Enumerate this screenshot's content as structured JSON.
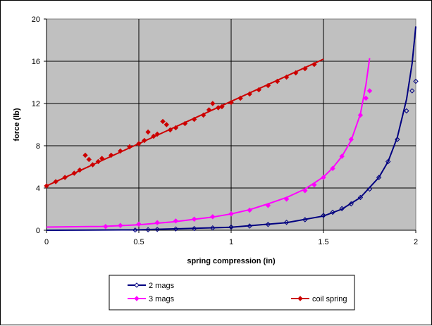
{
  "chart_data": {
    "type": "scatter",
    "title": "",
    "xlabel": "spring compression (in)",
    "ylabel": "force (lb)",
    "xlim": [
      0,
      2
    ],
    "ylim": [
      0,
      20
    ],
    "xticks": [
      "0",
      "0.5",
      "1",
      "1.5",
      "2"
    ],
    "yticks": [
      "0",
      "4",
      "8",
      "12",
      "16",
      "20"
    ],
    "grid": true,
    "legend_position": "bottom",
    "series": [
      {
        "name": "2 mags",
        "color": "#000080",
        "marker": "diamond-open",
        "points": [
          [
            0.48,
            0.02
          ],
          [
            0.55,
            0.05
          ],
          [
            0.6,
            0.08
          ],
          [
            0.7,
            0.12
          ],
          [
            0.8,
            0.16
          ],
          [
            0.9,
            0.22
          ],
          [
            1.0,
            0.3
          ],
          [
            1.1,
            0.4
          ],
          [
            1.2,
            0.55
          ],
          [
            1.3,
            0.75
          ],
          [
            1.4,
            1.0
          ],
          [
            1.5,
            1.4
          ],
          [
            1.55,
            1.7
          ],
          [
            1.6,
            2.05
          ],
          [
            1.65,
            2.5
          ],
          [
            1.7,
            3.1
          ],
          [
            1.75,
            3.9
          ],
          [
            1.8,
            5.0
          ],
          [
            1.85,
            6.5
          ],
          [
            1.9,
            8.6
          ],
          [
            1.95,
            11.3
          ],
          [
            1.98,
            13.2
          ],
          [
            2.0,
            14.1
          ]
        ],
        "fit": [
          [
            0,
            0
          ],
          [
            0.5,
            0.04
          ],
          [
            1.0,
            0.28
          ],
          [
            1.3,
            0.72
          ],
          [
            1.5,
            1.35
          ],
          [
            1.6,
            2.0
          ],
          [
            1.7,
            3.1
          ],
          [
            1.8,
            5.0
          ],
          [
            1.85,
            6.5
          ],
          [
            1.9,
            8.8
          ],
          [
            1.95,
            12.4
          ],
          [
            1.98,
            15.8
          ],
          [
            2.0,
            19.3
          ]
        ]
      },
      {
        "name": "3 mags",
        "color": "#FF00FF",
        "marker": "diamond",
        "points": [
          [
            0.32,
            0.35
          ],
          [
            0.4,
            0.45
          ],
          [
            0.5,
            0.58
          ],
          [
            0.6,
            0.72
          ],
          [
            0.7,
            0.88
          ],
          [
            0.8,
            1.05
          ],
          [
            0.9,
            1.28
          ],
          [
            1.0,
            1.55
          ],
          [
            1.1,
            1.9
          ],
          [
            1.2,
            2.35
          ],
          [
            1.3,
            2.95
          ],
          [
            1.4,
            3.75
          ],
          [
            1.45,
            4.3
          ],
          [
            1.5,
            5.0
          ],
          [
            1.55,
            5.85
          ],
          [
            1.6,
            7.0
          ],
          [
            1.65,
            8.6
          ],
          [
            1.7,
            10.9
          ],
          [
            1.73,
            12.5
          ],
          [
            1.75,
            13.2
          ]
        ],
        "fit": [
          [
            0,
            0.3
          ],
          [
            0.3,
            0.36
          ],
          [
            0.5,
            0.52
          ],
          [
            0.7,
            0.82
          ],
          [
            0.9,
            1.25
          ],
          [
            1.0,
            1.55
          ],
          [
            1.1,
            1.95
          ],
          [
            1.2,
            2.5
          ],
          [
            1.3,
            3.1
          ],
          [
            1.4,
            3.9
          ],
          [
            1.5,
            5.05
          ],
          [
            1.55,
            5.9
          ],
          [
            1.6,
            7.0
          ],
          [
            1.65,
            8.5
          ],
          [
            1.7,
            11.0
          ],
          [
            1.73,
            13.8
          ],
          [
            1.75,
            16.3
          ]
        ]
      },
      {
        "name": "coil spring",
        "color": "#CC0000",
        "marker": "diamond",
        "points": [
          [
            0.0,
            4.2
          ],
          [
            0.05,
            4.6
          ],
          [
            0.1,
            5.0
          ],
          [
            0.15,
            5.4
          ],
          [
            0.18,
            5.7
          ],
          [
            0.21,
            7.1
          ],
          [
            0.23,
            6.7
          ],
          [
            0.25,
            6.2
          ],
          [
            0.28,
            6.5
          ],
          [
            0.3,
            6.8
          ],
          [
            0.35,
            7.1
          ],
          [
            0.4,
            7.5
          ],
          [
            0.45,
            7.9
          ],
          [
            0.5,
            8.2
          ],
          [
            0.53,
            8.5
          ],
          [
            0.55,
            9.3
          ],
          [
            0.58,
            8.9
          ],
          [
            0.6,
            9.1
          ],
          [
            0.63,
            10.3
          ],
          [
            0.65,
            10.0
          ],
          [
            0.67,
            9.5
          ],
          [
            0.7,
            9.7
          ],
          [
            0.75,
            10.1
          ],
          [
            0.8,
            10.5
          ],
          [
            0.85,
            10.9
          ],
          [
            0.88,
            11.4
          ],
          [
            0.9,
            12.0
          ],
          [
            0.93,
            11.6
          ],
          [
            0.95,
            11.7
          ],
          [
            1.0,
            12.1
          ],
          [
            1.05,
            12.5
          ],
          [
            1.1,
            12.9
          ],
          [
            1.15,
            13.3
          ],
          [
            1.2,
            13.7
          ],
          [
            1.25,
            14.1
          ],
          [
            1.3,
            14.5
          ],
          [
            1.35,
            14.9
          ],
          [
            1.4,
            15.3
          ],
          [
            1.45,
            15.7
          ]
        ],
        "fit": [
          [
            0,
            4.2
          ],
          [
            1.5,
            16.2
          ]
        ]
      }
    ]
  }
}
